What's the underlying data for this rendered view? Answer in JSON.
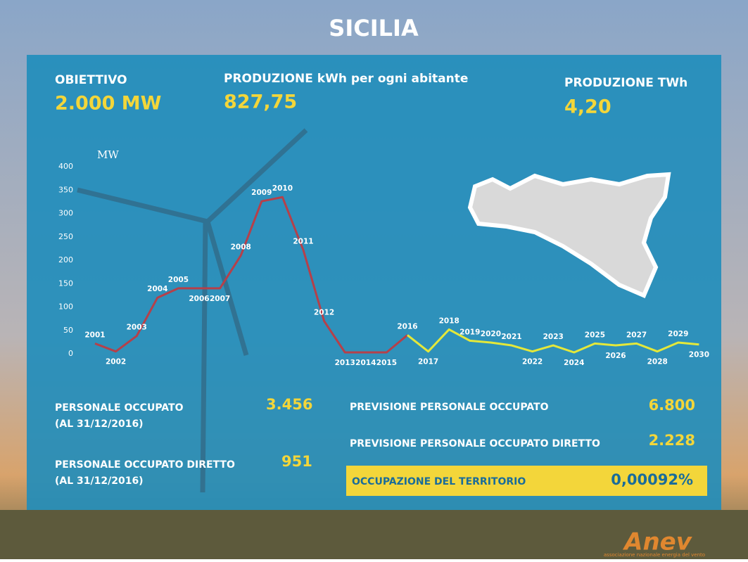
{
  "header": {
    "title": "SICILIA"
  },
  "stats": {
    "obiettivo": {
      "label": "OBIETTIVO",
      "value": "2.000 MW"
    },
    "produzione_abitante": {
      "label": "PRODUZIONE kWh per ogni abitante",
      "value": "827,75"
    },
    "produzione_twh": {
      "label": "PRODUZIONE TWh",
      "value": "4,20"
    }
  },
  "employment": {
    "personale": {
      "label": "PERSONALE OCCUPATO",
      "note": "(AL 31/12/2016)",
      "value": "3.456"
    },
    "personale_diretto": {
      "label": "PERSONALE OCCUPATO DIRETTO",
      "note": "(AL 31/12/2016)",
      "value": "951"
    },
    "previsione": {
      "label": "PREVISIONE PERSONALE OCCUPATO",
      "value": "6.800"
    },
    "previsione_diretto": {
      "label": "PREVISIONE PERSONALE OCCUPATO DIRETTO",
      "value": "2.228"
    },
    "territorio": {
      "label": "OCCUPAZIONE DEL TERRITORIO",
      "value": "0,00092%"
    }
  },
  "logo": {
    "name": "Anev",
    "tagline": "associazione nazionale energia del vento"
  },
  "chart_data": {
    "type": "line",
    "y_label": "MW",
    "categories": [
      "2001",
      "2002",
      "2003",
      "2004",
      "2005",
      "2006",
      "2007",
      "2008",
      "2009",
      "2010",
      "2011",
      "2012",
      "2013",
      "2014",
      "2015",
      "2016",
      "2017",
      "2018",
      "2019",
      "2020",
      "2021",
      "2022",
      "2023",
      "2024",
      "2025",
      "2026",
      "2027",
      "2028",
      "2029",
      "2030"
    ],
    "series": [
      {
        "color": "#b5404a",
        "values": [
          22,
          5,
          38,
          120,
          140,
          140,
          140,
          210,
          326,
          335,
          222,
          70,
          3,
          3,
          3,
          40,
          null,
          null,
          null,
          null,
          null,
          null,
          null,
          null,
          null,
          null,
          null,
          null,
          null,
          null
        ]
      },
      {
        "color": "#e4e83a",
        "values": [
          null,
          null,
          null,
          null,
          null,
          null,
          null,
          null,
          null,
          null,
          null,
          null,
          null,
          null,
          null,
          40,
          5,
          52,
          28,
          24,
          18,
          5,
          18,
          3,
          22,
          18,
          22,
          5,
          24,
          20
        ]
      }
    ],
    "ylim": [
      0,
      400
    ],
    "yticks": [
      0,
      50,
      100,
      150,
      200,
      250,
      300,
      350,
      400
    ]
  }
}
